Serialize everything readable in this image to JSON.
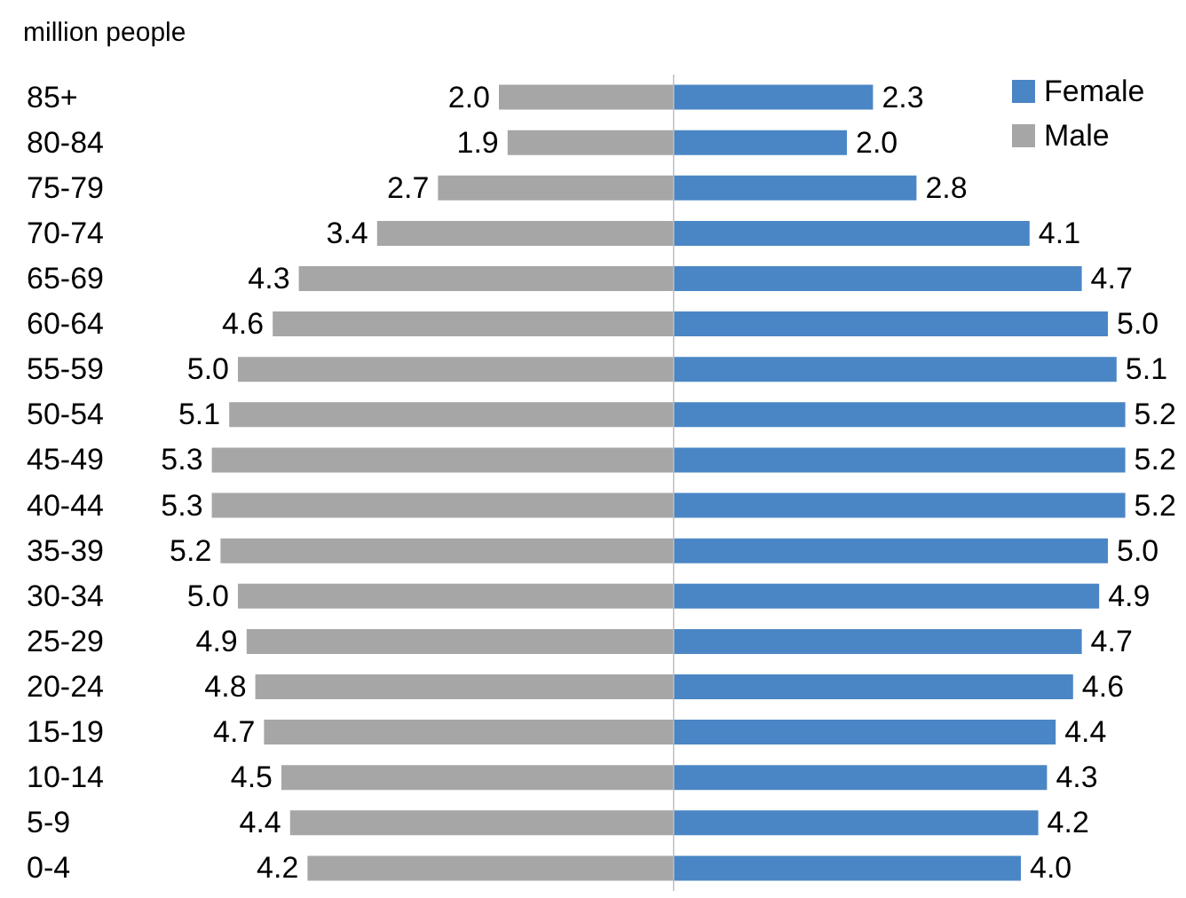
{
  "chart_data": [
    {
      "type": "bar",
      "orientation": "horizontal",
      "xlabel": "million people",
      "categories": [
        "85+",
        "80-84",
        "75-79",
        "70-74",
        "65-69",
        "60-64",
        "55-59",
        "50-54",
        "45-49",
        "40-44",
        "35-39",
        "30-34",
        "25-29",
        "20-24",
        "15-19",
        "10-14",
        "5-9",
        "0-4"
      ],
      "series": [
        {
          "name": "Male",
          "color": "#a6a6a6",
          "values": [
            2.0,
            1.9,
            2.7,
            3.4,
            4.3,
            4.6,
            5.0,
            5.1,
            5.3,
            5.3,
            5.2,
            5.0,
            4.9,
            4.8,
            4.7,
            4.5,
            4.4,
            4.2
          ],
          "value_labels": [
            "2.0",
            "1.9",
            "2.7",
            "3.4",
            "4.3",
            "4.6",
            "5.0",
            "5.1",
            "5.3",
            "5.3",
            "5.2",
            "5.0",
            "4.9",
            "4.8",
            "4.7",
            "4.5",
            "4.4",
            "4.2"
          ]
        }
      ],
      "xlim": [
        5.3,
        0
      ],
      "tick_labels": "y",
      "grid": false,
      "legend": "top right"
    },
    {
      "type": "bar",
      "orientation": "horizontal",
      "categories": [
        null,
        null,
        null,
        null,
        null,
        null,
        null,
        null,
        null,
        null,
        null,
        null,
        null,
        null,
        null,
        null,
        null,
        null
      ],
      "series": [
        {
          "name": "Female",
          "color": "#4a86c5",
          "values": [
            2.3,
            2.0,
            2.8,
            4.1,
            4.7,
            5.0,
            5.1,
            5.2,
            5.2,
            5.2,
            5.0,
            4.9,
            4.7,
            4.6,
            4.4,
            4.3,
            4.2,
            4.0
          ],
          "value_labels": [
            "2.3",
            "2.0",
            "2.8",
            "4.1",
            "4.7",
            "5.0",
            "5.1",
            "5.2",
            "5.2",
            "5.2",
            "5.0",
            "4.9",
            "4.7",
            "4.6",
            "4.4",
            "4.3",
            "4.2",
            "4.0"
          ]
        }
      ],
      "xlim": [
        0,
        5.2
      ],
      "tick_labels": false,
      "grid": false,
      "legend": "top right",
      "ref_lines": [
        {
          "axis": "x",
          "value": 0,
          "color": "#bfbfbf"
        }
      ]
    }
  ]
}
